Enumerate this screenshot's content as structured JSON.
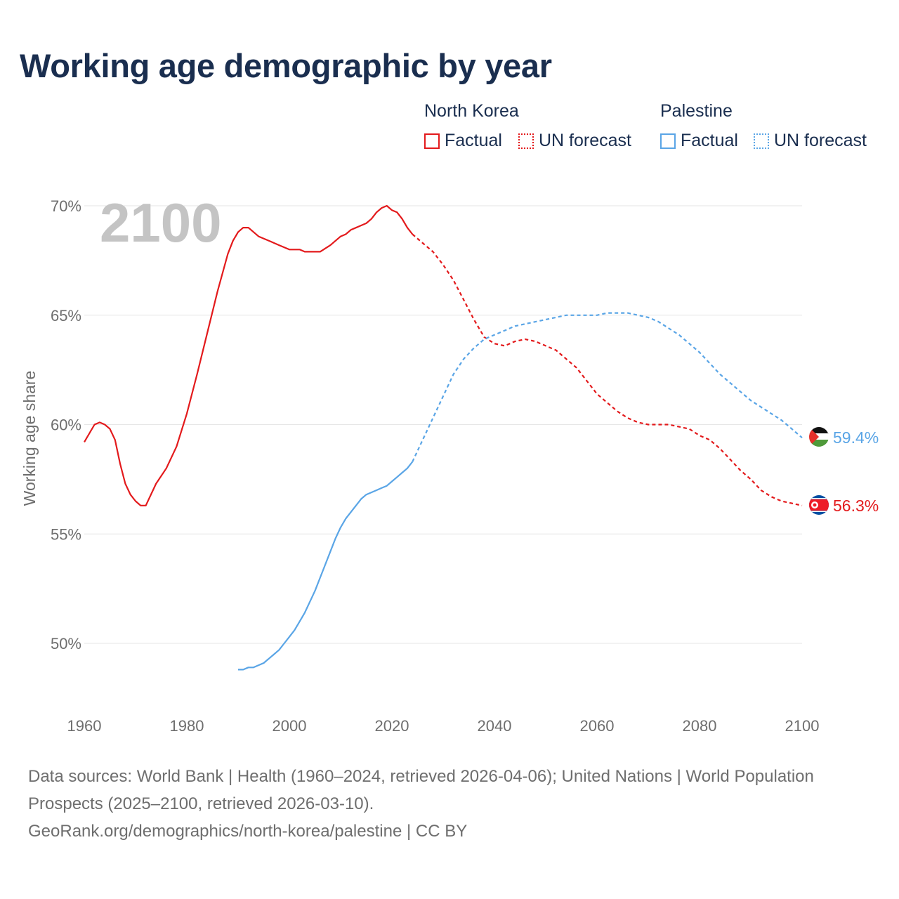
{
  "title": "Working age demographic by year",
  "legend": {
    "groups": [
      {
        "name": "North Korea",
        "factual_label": "Factual",
        "forecast_label": "UN forecast",
        "color": "#e31a1c"
      },
      {
        "name": "Palestine",
        "factual_label": "Factual",
        "forecast_label": "UN forecast",
        "color": "#5aa5e6"
      }
    ]
  },
  "year_overlay": "2100",
  "footer": {
    "sources": "Data sources: World Bank | Health (1960–2024, retrieved 2026-04-06); United Nations | World Population Prospects (2025–2100, retrieved 2026-03-10).",
    "url": "GeoRank.org/demographics/north-korea/palestine | CC BY"
  },
  "chart_data": {
    "type": "line",
    "title": "Working age demographic by year",
    "xlabel": "",
    "ylabel": "Working age share",
    "xlim": [
      1960,
      2100
    ],
    "ylim": [
      48,
      70
    ],
    "x_ticks": [
      1960,
      1980,
      2000,
      2020,
      2040,
      2060,
      2080,
      2100
    ],
    "y_ticks": [
      {
        "value": 50,
        "label": "50%"
      },
      {
        "value": 55,
        "label": "55%"
      },
      {
        "value": 60,
        "label": "60%"
      },
      {
        "value": 65,
        "label": "65%"
      },
      {
        "value": 70,
        "label": "70%"
      }
    ],
    "grid": true,
    "series": [
      {
        "name": "North Korea",
        "color": "#e31a1c",
        "end_label": "56.3%",
        "factual": {
          "x": [
            1960,
            1962,
            1963,
            1964,
            1965,
            1966,
            1967,
            1968,
            1969,
            1970,
            1971,
            1972,
            1974,
            1976,
            1978,
            1980,
            1982,
            1984,
            1986,
            1988,
            1989,
            1990,
            1991,
            1992,
            1994,
            1996,
            1998,
            2000,
            2002,
            2003,
            2006,
            2008,
            2010,
            2011,
            2012,
            2014,
            2015,
            2016,
            2017,
            2018,
            2019,
            2020,
            2021,
            2022,
            2023,
            2024
          ],
          "y": [
            59.2,
            60.0,
            60.1,
            60.0,
            59.8,
            59.3,
            58.2,
            57.3,
            56.8,
            56.5,
            56.3,
            56.3,
            57.3,
            58.0,
            59.0,
            60.5,
            62.3,
            64.2,
            66.1,
            67.8,
            68.4,
            68.8,
            69.0,
            69.0,
            68.6,
            68.4,
            68.2,
            68.0,
            68.0,
            67.9,
            67.9,
            68.2,
            68.6,
            68.7,
            68.9,
            69.1,
            69.2,
            69.4,
            69.7,
            69.9,
            70.0,
            69.8,
            69.7,
            69.4,
            69.0,
            68.7
          ]
        },
        "forecast": {
          "x": [
            2024,
            2026,
            2028,
            2030,
            2032,
            2034,
            2036,
            2038,
            2040,
            2042,
            2044,
            2046,
            2048,
            2050,
            2052,
            2054,
            2056,
            2058,
            2060,
            2062,
            2064,
            2066,
            2068,
            2070,
            2072,
            2074,
            2076,
            2078,
            2080,
            2082,
            2084,
            2086,
            2088,
            2090,
            2092,
            2094,
            2096,
            2098,
            2100
          ],
          "y": [
            68.7,
            68.3,
            67.9,
            67.3,
            66.6,
            65.7,
            64.8,
            64.0,
            63.7,
            63.6,
            63.8,
            63.9,
            63.8,
            63.6,
            63.4,
            63.0,
            62.6,
            62.0,
            61.4,
            61.0,
            60.6,
            60.3,
            60.1,
            60.0,
            60.0,
            60.0,
            59.9,
            59.8,
            59.5,
            59.3,
            58.9,
            58.4,
            57.9,
            57.5,
            57.0,
            56.7,
            56.5,
            56.4,
            56.3
          ]
        }
      },
      {
        "name": "Palestine",
        "color": "#5aa5e6",
        "end_label": "59.4%",
        "factual": {
          "x": [
            1990,
            1991,
            1992,
            1993,
            1994,
            1995,
            1996,
            1997,
            1998,
            1999,
            2000,
            2001,
            2002,
            2003,
            2004,
            2005,
            2006,
            2007,
            2008,
            2009,
            2010,
            2011,
            2012,
            2013,
            2014,
            2015,
            2016,
            2017,
            2018,
            2019,
            2020,
            2021,
            2022,
            2023,
            2024
          ],
          "y": [
            48.8,
            48.8,
            48.9,
            48.9,
            49.0,
            49.1,
            49.3,
            49.5,
            49.7,
            50.0,
            50.3,
            50.6,
            51.0,
            51.4,
            51.9,
            52.4,
            53.0,
            53.6,
            54.2,
            54.8,
            55.3,
            55.7,
            56.0,
            56.3,
            56.6,
            56.8,
            56.9,
            57.0,
            57.1,
            57.2,
            57.4,
            57.6,
            57.8,
            58.0,
            58.3
          ]
        },
        "forecast": {
          "x": [
            2024,
            2026,
            2028,
            2030,
            2032,
            2034,
            2036,
            2038,
            2040,
            2042,
            2044,
            2046,
            2048,
            2050,
            2052,
            2054,
            2056,
            2058,
            2060,
            2062,
            2064,
            2066,
            2068,
            2070,
            2072,
            2074,
            2076,
            2078,
            2080,
            2082,
            2084,
            2086,
            2088,
            2090,
            2092,
            2094,
            2096,
            2098,
            2100
          ],
          "y": [
            58.3,
            59.3,
            60.3,
            61.3,
            62.3,
            63.0,
            63.5,
            63.9,
            64.1,
            64.3,
            64.5,
            64.6,
            64.7,
            64.8,
            64.9,
            65.0,
            65.0,
            65.0,
            65.0,
            65.1,
            65.1,
            65.1,
            65.0,
            64.9,
            64.7,
            64.4,
            64.1,
            63.7,
            63.3,
            62.8,
            62.3,
            61.9,
            61.5,
            61.1,
            60.8,
            60.5,
            60.2,
            59.8,
            59.4
          ]
        }
      }
    ]
  }
}
